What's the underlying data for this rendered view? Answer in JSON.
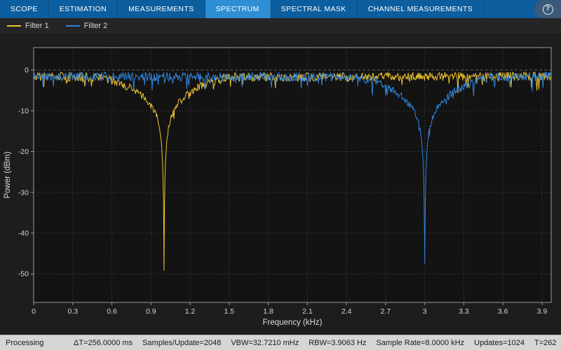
{
  "window": {
    "help_icon": "?"
  },
  "tabs": {
    "items": [
      {
        "label": "SCOPE",
        "active": false
      },
      {
        "label": "ESTIMATION",
        "active": false
      },
      {
        "label": "MEASUREMENTS",
        "active": false
      },
      {
        "label": "SPECTRUM",
        "active": true
      },
      {
        "label": "SPECTRAL MASK",
        "active": false
      },
      {
        "label": "CHANNEL MEASUREMENTS",
        "active": false
      }
    ]
  },
  "legend": {
    "items": [
      {
        "label": "Filter 1",
        "color": "#eec32d"
      },
      {
        "label": "Filter 2",
        "color": "#2f82d8"
      }
    ]
  },
  "status": {
    "state": "Processing",
    "items": [
      "ΔT=256.0000 ms",
      "Samples/Update=2048",
      "VBW=32.7210 mHz",
      "RBW=3.9063 Hz",
      "Sample Rate=8.0000 kHz",
      "Updates=1024",
      "T=262"
    ]
  },
  "colors": {
    "tabbar": "#0d5e9e",
    "tab_active": "#2e8fd5",
    "plot_bg": "#1d1d1d",
    "axes_bg": "#131313",
    "grid": "#4d4d4d",
    "zero_line": "#5d5d5d",
    "axis": "#9a9a9a",
    "tick_text": "#d4d4d4",
    "axis_title_text": "#dcdcdc",
    "statusbar_bg": "#d6d6d6"
  },
  "chart_data": {
    "type": "line",
    "title": "",
    "xlabel": "Frequency (kHz)",
    "ylabel": "Power (dBm)",
    "xlim": [
      0,
      3.97
    ],
    "ylim": [
      -57,
      5.5
    ],
    "grid": true,
    "legend_position": "top-left",
    "x_ticks": [
      0,
      0.3,
      0.6,
      0.9,
      1.2,
      1.5,
      1.8,
      2.1,
      2.4,
      2.7,
      3,
      3.3,
      3.6,
      3.9
    ],
    "x_tick_labels": [
      "0",
      "0.3",
      "0.6",
      "0.9",
      "1.2",
      "1.5",
      "1.8",
      "2.1",
      "2.4",
      "2.7",
      "3",
      "3.3",
      "3.6",
      "3.9"
    ],
    "y_ticks": [
      0,
      -10,
      -20,
      -30,
      -40,
      -50
    ],
    "y_tick_labels": [
      "0",
      "-10",
      "-20",
      "-30",
      "-40",
      "-50"
    ],
    "series": [
      {
        "name": "Filter 1",
        "color": "#eec32d",
        "baseline_dbm": -1.5,
        "notch_center_khz": 1.0,
        "notch_depth_dbm": -49.2,
        "keypoints": [
          [
            0,
            -1.5
          ],
          [
            0.5,
            -1.8
          ],
          [
            0.6,
            -2.5
          ],
          [
            0.7,
            -3.8
          ],
          [
            0.78,
            -5.0
          ],
          [
            0.85,
            -6.8
          ],
          [
            0.9,
            -8.5
          ],
          [
            0.94,
            -11
          ],
          [
            0.965,
            -14
          ],
          [
            0.98,
            -18
          ],
          [
            0.988,
            -22
          ],
          [
            0.993,
            -27
          ],
          [
            0.996,
            -33
          ],
          [
            0.998,
            -39
          ],
          [
            1.0,
            -49.2
          ],
          [
            1.002,
            -39
          ],
          [
            1.004,
            -33
          ],
          [
            1.007,
            -27
          ],
          [
            1.012,
            -22
          ],
          [
            1.02,
            -18
          ],
          [
            1.035,
            -14
          ],
          [
            1.06,
            -11
          ],
          [
            1.1,
            -8.5
          ],
          [
            1.15,
            -6.8
          ],
          [
            1.22,
            -5.0
          ],
          [
            1.3,
            -3.8
          ],
          [
            1.4,
            -2.5
          ],
          [
            1.5,
            -1.8
          ],
          [
            3.97,
            -1.5
          ]
        ]
      },
      {
        "name": "Filter 2",
        "color": "#2f82d8",
        "baseline_dbm": -1.5,
        "notch_center_khz": 3.0,
        "notch_depth_dbm": -47.5,
        "keypoints": [
          [
            0,
            -1.5
          ],
          [
            2.5,
            -1.8
          ],
          [
            2.6,
            -2.6
          ],
          [
            2.7,
            -4.0
          ],
          [
            2.78,
            -5.4
          ],
          [
            2.85,
            -7.2
          ],
          [
            2.9,
            -9.0
          ],
          [
            2.94,
            -11.5
          ],
          [
            2.965,
            -14.5
          ],
          [
            2.98,
            -18.5
          ],
          [
            2.988,
            -23
          ],
          [
            2.993,
            -28
          ],
          [
            2.996,
            -34
          ],
          [
            2.998,
            -40
          ],
          [
            3.0,
            -47.5
          ],
          [
            3.002,
            -40
          ],
          [
            3.004,
            -34
          ],
          [
            3.007,
            -28
          ],
          [
            3.012,
            -23
          ],
          [
            3.02,
            -18.5
          ],
          [
            3.035,
            -14.5
          ],
          [
            3.06,
            -11.5
          ],
          [
            3.1,
            -9.0
          ],
          [
            3.15,
            -7.2
          ],
          [
            3.22,
            -5.4
          ],
          [
            3.3,
            -4.0
          ],
          [
            3.4,
            -2.6
          ],
          [
            3.5,
            -1.8
          ],
          [
            3.97,
            -1.5
          ]
        ]
      }
    ],
    "noise": {
      "amplitude_db": 1.1,
      "spike_probability": 0.07,
      "spike_depth_db": 3.0,
      "seeds": [
        3,
        11
      ]
    }
  }
}
